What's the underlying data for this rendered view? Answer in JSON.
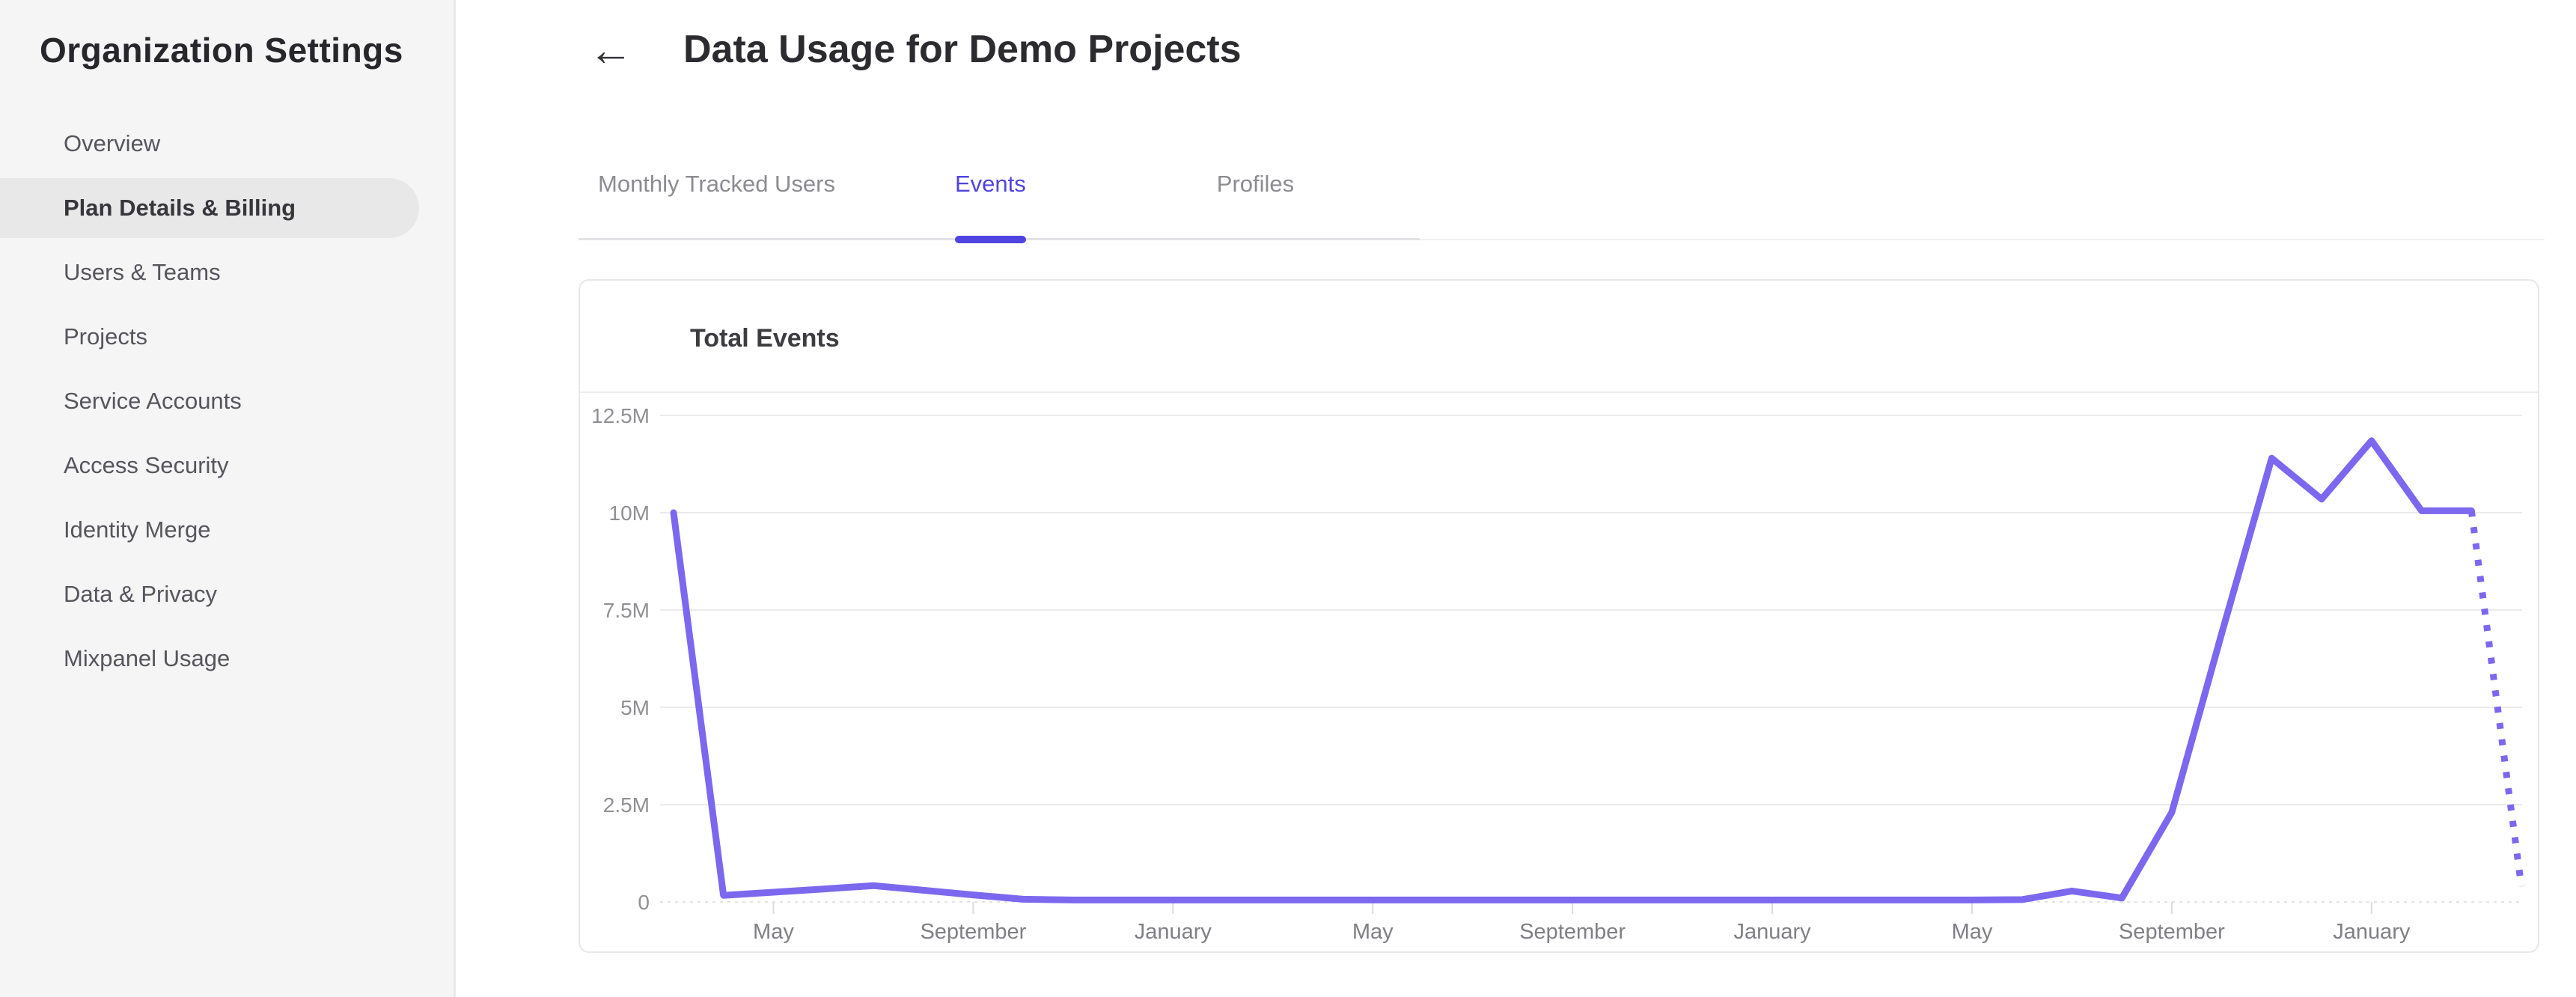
{
  "sidebar": {
    "title": "Organization Settings",
    "items": [
      {
        "label": "Overview",
        "active": false
      },
      {
        "label": "Plan Details & Billing",
        "active": true
      },
      {
        "label": "Users & Teams",
        "active": false
      },
      {
        "label": "Projects",
        "active": false
      },
      {
        "label": "Service Accounts",
        "active": false
      },
      {
        "label": "Access Security",
        "active": false
      },
      {
        "label": "Identity Merge",
        "active": false
      },
      {
        "label": "Data & Privacy",
        "active": false
      },
      {
        "label": "Mixpanel Usage",
        "active": false
      }
    ]
  },
  "header": {
    "back_icon": "←",
    "title": "Data Usage for Demo Projects"
  },
  "tabs": [
    {
      "label": "Monthly Tracked Users",
      "active": false
    },
    {
      "label": "Events",
      "active": true
    },
    {
      "label": "Profiles",
      "active": false
    }
  ],
  "card": {
    "title": "Total Events"
  },
  "colors": {
    "accent": "#4f44e0",
    "line": "#7c68ef",
    "gridline": "#ebebed",
    "zero_line": "#e4e4e6",
    "tick": "#dcdcde"
  },
  "chart_data": {
    "type": "line",
    "title": "Total Events",
    "unit": "events, M = millions",
    "ylim": [
      0,
      12.5
    ],
    "grid": true,
    "legend": false,
    "y_ticks": [
      {
        "label": "0",
        "value": 0
      },
      {
        "label": "2.5M",
        "value": 2.5
      },
      {
        "label": "5M",
        "value": 5
      },
      {
        "label": "7.5M",
        "value": 7.5
      },
      {
        "label": "10M",
        "value": 10
      },
      {
        "label": "12.5M",
        "value": 12.5
      }
    ],
    "x_ticks": [
      {
        "label": "May",
        "index": 2
      },
      {
        "label": "September",
        "index": 6
      },
      {
        "label": "January",
        "index": 10
      },
      {
        "label": "May",
        "index": 14
      },
      {
        "label": "September",
        "index": 18
      },
      {
        "label": "January",
        "index": 22
      },
      {
        "label": "May",
        "index": 26
      },
      {
        "label": "September",
        "index": 30
      },
      {
        "label": "January",
        "index": 34
      }
    ],
    "values_millions": [
      10.0,
      0.17,
      0.25,
      0.33,
      0.42,
      0.3,
      0.18,
      0.07,
      0.05,
      0.05,
      0.05,
      0.05,
      0.05,
      0.05,
      0.05,
      0.05,
      0.05,
      0.05,
      0.05,
      0.05,
      0.05,
      0.05,
      0.05,
      0.05,
      0.05,
      0.05,
      0.05,
      0.06,
      0.28,
      0.1,
      2.3,
      6.9,
      11.4,
      10.35,
      11.85,
      10.05,
      10.05,
      0.4
    ],
    "projected_from_index": 36,
    "line_color": "#7c68ef"
  }
}
